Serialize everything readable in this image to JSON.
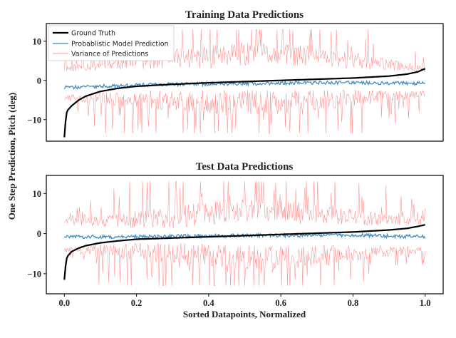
{
  "chart_data": [
    {
      "type": "line",
      "title": "Training Data Predictions",
      "ylim": [
        -15.5,
        14.5
      ],
      "xlim": [
        -0.05,
        1.05
      ],
      "yticks": [
        -10,
        0,
        10
      ],
      "ytick_labels": [
        "−10",
        "0",
        "10"
      ],
      "grid": false,
      "legend_position": "top-left",
      "legend": [
        "Ground Truth",
        "Probablistic Model Prediction",
        "Variance of Predictions"
      ],
      "series": [
        {
          "name": "Ground Truth",
          "color": "#000000",
          "x": [
            0.0,
            0.005,
            0.01,
            0.02,
            0.04,
            0.06,
            0.1,
            0.15,
            0.2,
            0.3,
            0.4,
            0.5,
            0.6,
            0.7,
            0.8,
            0.9,
            0.95,
            0.98,
            0.99,
            1.0
          ],
          "y": [
            -14.5,
            -8.5,
            -7.5,
            -6.5,
            -5.0,
            -4.0,
            -2.8,
            -2.0,
            -1.5,
            -1.0,
            -0.6,
            -0.3,
            0.0,
            0.3,
            0.6,
            1.1,
            1.6,
            2.2,
            2.6,
            3.0
          ]
        },
        {
          "name": "Probablistic Model Prediction",
          "color": "#3a87bf",
          "x": [
            0.0,
            0.1,
            0.2,
            0.3,
            0.4,
            0.5,
            0.6,
            0.7,
            0.8,
            0.9,
            1.0
          ],
          "y": [
            -1.8,
            -1.5,
            -1.2,
            -1.0,
            -0.9,
            -0.8,
            -0.7,
            -0.6,
            -0.6,
            -0.7,
            -0.8
          ]
        },
        {
          "name": "Variance of Predictions",
          "color": "#ff7a7a",
          "x": [
            0.0,
            0.1,
            0.2,
            0.3,
            0.4,
            0.5,
            0.6,
            0.7,
            0.8,
            0.9,
            1.0
          ],
          "upper": [
            3.0,
            4.0,
            5.0,
            5.5,
            6.0,
            6.5,
            6.5,
            6.0,
            5.0,
            4.0,
            3.0
          ],
          "lower": [
            -4.5,
            -4.5,
            -5.0,
            -5.0,
            -5.5,
            -5.5,
            -5.5,
            -5.0,
            -4.5,
            -4.0,
            -3.5
          ],
          "spike_max": 13,
          "spike_min": -13.5
        }
      ]
    },
    {
      "type": "line",
      "title": "Test Data Predictions",
      "xlabel": "Sorted Datapoints, Normalized",
      "ylim": [
        -15,
        14.5
      ],
      "xlim": [
        -0.05,
        1.05
      ],
      "xticks": [
        0.0,
        0.2,
        0.4,
        0.6,
        0.8,
        1.0
      ],
      "xtick_labels": [
        "0.0",
        "0.2",
        "0.4",
        "0.6",
        "0.8",
        "1.0"
      ],
      "yticks": [
        -10,
        0,
        10
      ],
      "ytick_labels": [
        "−10",
        "0",
        "10"
      ],
      "grid": false,
      "series": [
        {
          "name": "Ground Truth",
          "color": "#000000",
          "x": [
            0.0,
            0.005,
            0.01,
            0.02,
            0.04,
            0.06,
            0.1,
            0.15,
            0.2,
            0.3,
            0.4,
            0.5,
            0.6,
            0.7,
            0.8,
            0.9,
            0.95,
            0.98,
            1.0
          ],
          "y": [
            -11.5,
            -6.5,
            -5.5,
            -4.5,
            -3.6,
            -3.0,
            -2.3,
            -1.8,
            -1.4,
            -1.1,
            -0.8,
            -0.5,
            -0.2,
            0.1,
            0.4,
            0.9,
            1.3,
            1.8,
            2.2
          ]
        },
        {
          "name": "Probablistic Model Prediction",
          "color": "#3a87bf",
          "x": [
            0.0,
            0.1,
            0.2,
            0.3,
            0.4,
            0.5,
            0.6,
            0.7,
            0.8,
            0.9,
            1.0
          ],
          "y": [
            -0.8,
            -0.8,
            -0.8,
            -0.7,
            -0.6,
            -0.5,
            -0.5,
            -0.4,
            -0.4,
            -0.6,
            -0.8
          ]
        },
        {
          "name": "Variance of Predictions",
          "color": "#ff7a7a",
          "x": [
            0.0,
            0.1,
            0.2,
            0.3,
            0.4,
            0.5,
            0.6,
            0.7,
            0.8,
            0.9,
            1.0
          ],
          "upper": [
            3.0,
            3.0,
            3.5,
            4.0,
            5.0,
            6.0,
            5.5,
            5.0,
            4.0,
            3.5,
            3.0
          ],
          "lower": [
            -4.0,
            -4.0,
            -4.5,
            -5.0,
            -5.5,
            -6.0,
            -6.0,
            -5.5,
            -5.0,
            -4.5,
            -4.0
          ],
          "spike_max": 13,
          "spike_min": -13
        }
      ]
    }
  ],
  "shared_ylabel": "One Step Prediction, Pitch (deg)"
}
